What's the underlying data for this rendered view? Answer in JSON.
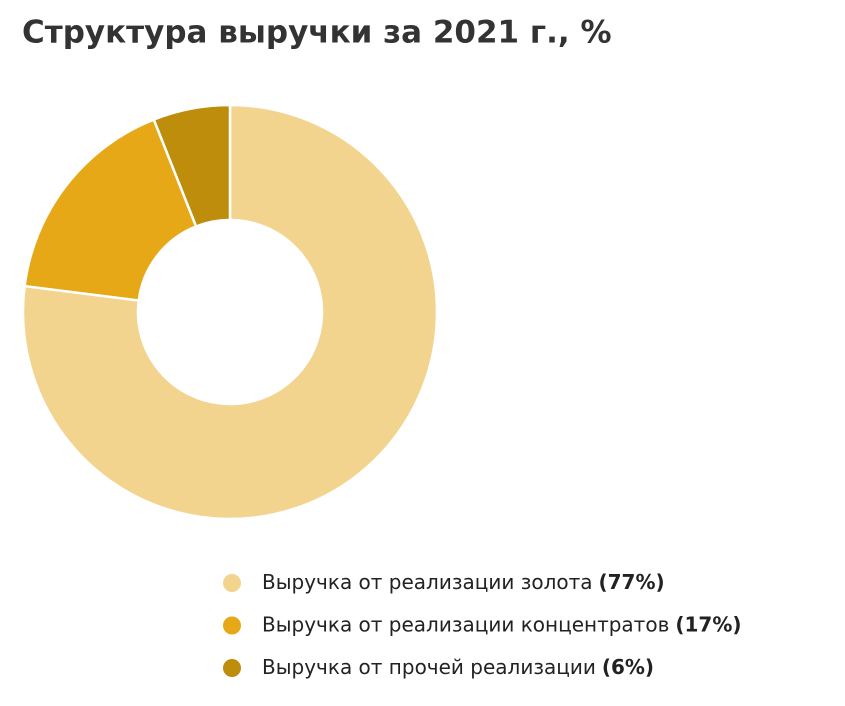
{
  "chart_data": {
    "type": "pie",
    "title": "Структура выручки за 2021 г., %",
    "categories": [
      "Выручка от реализации золота",
      "Выручка от реализации концентратов",
      "Выручка от прочей реализации"
    ],
    "values": [
      77,
      17,
      6
    ],
    "value_labels": [
      "(77%)",
      "(17%)",
      "(6%)"
    ],
    "colors": [
      "#f2d48f",
      "#e6a817",
      "#bf8d0c"
    ]
  }
}
